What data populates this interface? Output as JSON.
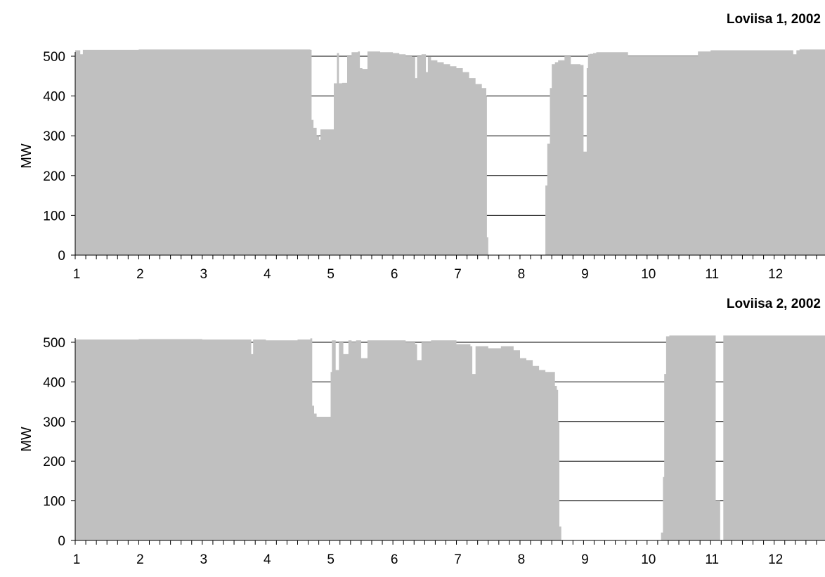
{
  "chart_data": [
    {
      "type": "area",
      "title": "Loviisa 1, 2002",
      "xlabel": "",
      "ylabel": "MW",
      "xlim": [
        1,
        12.8
      ],
      "ylim": [
        0,
        500
      ],
      "yticks": [
        0,
        100,
        200,
        300,
        400,
        500
      ],
      "xtick_labels": [
        "1",
        "2",
        "3",
        "4",
        "5",
        "6",
        "7",
        "8",
        "9",
        "10",
        "11",
        "12"
      ],
      "grid": true,
      "series": [
        {
          "x": [
            1.0,
            1.08,
            1.12,
            2.0,
            3.0,
            4.0,
            4.7,
            4.72,
            4.75,
            4.8,
            4.84,
            4.86,
            5.05,
            5.07,
            5.12,
            5.15,
            5.2,
            5.28,
            5.35,
            5.45,
            5.48,
            5.52,
            5.6,
            5.8,
            6.0,
            6.1,
            6.2,
            6.3,
            6.35,
            6.38,
            6.45,
            6.52,
            6.55,
            6.6,
            6.7,
            6.8,
            6.9,
            7.0,
            7.1,
            7.2,
            7.3,
            7.4,
            7.47,
            7.48,
            7.5,
            7.52,
            8.38,
            8.4,
            8.43,
            8.47,
            8.5,
            8.55,
            8.6,
            8.7,
            8.8,
            8.85,
            8.9,
            8.95,
            9.0,
            9.05,
            9.07,
            9.1,
            9.15,
            9.2,
            9.5,
            9.7,
            9.8,
            10.0,
            10.5,
            10.8,
            11.0,
            11.5,
            12.0,
            12.3,
            12.35,
            12.4,
            12.8
          ],
          "y": [
            515,
            505,
            516,
            517,
            517,
            517,
            516,
            340,
            320,
            300,
            290,
            316,
            316,
            432,
            508,
            432,
            433,
            500,
            510,
            512,
            470,
            468,
            512,
            510,
            508,
            505,
            500,
            498,
            445,
            500,
            505,
            460,
            498,
            490,
            485,
            480,
            475,
            470,
            460,
            445,
            430,
            420,
            400,
            45,
            0,
            0,
            0,
            175,
            280,
            420,
            480,
            485,
            490,
            500,
            480,
            480,
            480,
            478,
            260,
            470,
            505,
            506,
            508,
            510,
            510,
            500,
            500,
            500,
            500,
            512,
            515,
            515,
            515,
            505,
            515,
            517,
            517
          ]
        }
      ]
    },
    {
      "type": "area",
      "title": "Loviisa 2, 2002",
      "xlabel": "",
      "ylabel": "MW",
      "xlim": [
        1,
        12.8
      ],
      "ylim": [
        0,
        500
      ],
      "yticks": [
        0,
        100,
        200,
        300,
        400,
        500
      ],
      "xtick_labels": [
        "1",
        "2",
        "3",
        "4",
        "5",
        "6",
        "7",
        "8",
        "9",
        "10",
        "11",
        "12"
      ],
      "grid": true,
      "series": [
        {
          "x": [
            1.0,
            2.0,
            3.0,
            3.75,
            3.77,
            3.8,
            4.0,
            4.5,
            4.7,
            4.73,
            4.76,
            4.8,
            5.0,
            5.02,
            5.04,
            5.1,
            5.15,
            5.22,
            5.3,
            5.35,
            5.42,
            5.5,
            5.6,
            6.0,
            6.2,
            6.35,
            6.38,
            6.45,
            6.55,
            6.6,
            7.0,
            7.22,
            7.25,
            7.3,
            7.5,
            7.7,
            7.9,
            8.0,
            8.1,
            8.2,
            8.3,
            8.4,
            8.5,
            8.55,
            8.58,
            8.6,
            8.62,
            8.65,
            10.2,
            10.22,
            10.25,
            10.27,
            10.3,
            10.35,
            11.0,
            11.05,
            11.08,
            11.15,
            11.2,
            11.6,
            12.0,
            12.8
          ],
          "y": [
            507,
            508,
            507,
            507,
            470,
            507,
            505,
            507,
            510,
            340,
            320,
            312,
            312,
            425,
            505,
            430,
            500,
            470,
            505,
            500,
            505,
            460,
            505,
            505,
            500,
            495,
            455,
            500,
            500,
            505,
            495,
            490,
            420,
            490,
            485,
            490,
            480,
            460,
            455,
            440,
            430,
            425,
            425,
            390,
            380,
            300,
            35,
            0,
            0,
            20,
            160,
            420,
            515,
            517,
            517,
            517,
            100,
            0,
            517,
            517,
            517,
            517
          ]
        }
      ]
    }
  ]
}
